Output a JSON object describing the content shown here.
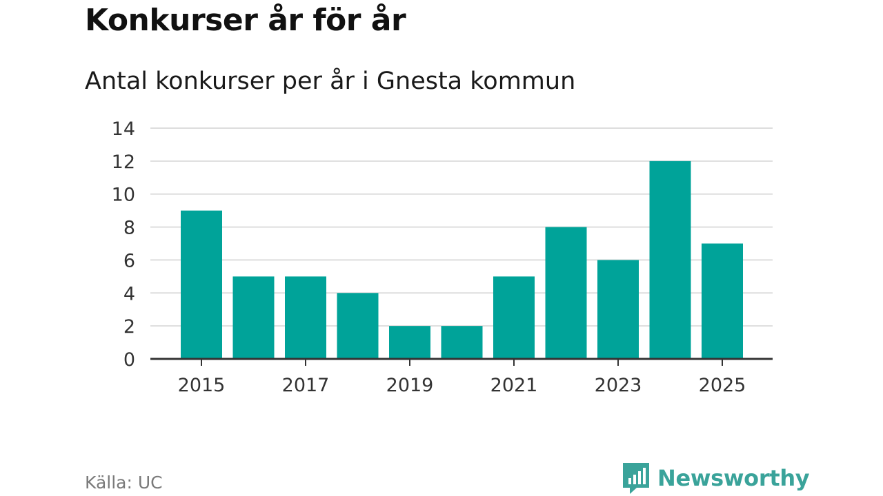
{
  "header": {
    "title": "Konkurser år för år",
    "subtitle": "Antal konkurser per år i Gnesta kommun"
  },
  "footer": {
    "source": "Källa: UC",
    "brand": "Newsworthy",
    "brand_icon": "newsworthy-logo-icon"
  },
  "colors": {
    "bar": "#00a399",
    "brand": "#3aa39a",
    "grid": "#dddddd",
    "axis": "#333333"
  },
  "chart_data": {
    "type": "bar",
    "title": "Antal konkurser per år i Gnesta kommun",
    "categories": [
      "2015",
      "2016",
      "2017",
      "2018",
      "2019",
      "2020",
      "2021",
      "2022",
      "2023",
      "2024",
      "2025"
    ],
    "values": [
      9,
      5,
      5,
      4,
      2,
      2,
      5,
      8,
      6,
      12,
      7
    ],
    "x_tick_labels": [
      "2015",
      "2017",
      "2019",
      "2021",
      "2023",
      "2025"
    ],
    "y_ticks": [
      0,
      2,
      4,
      6,
      8,
      10,
      12,
      14
    ],
    "ylim": [
      0,
      14
    ],
    "xlabel": "",
    "ylabel": "",
    "grid": true
  }
}
